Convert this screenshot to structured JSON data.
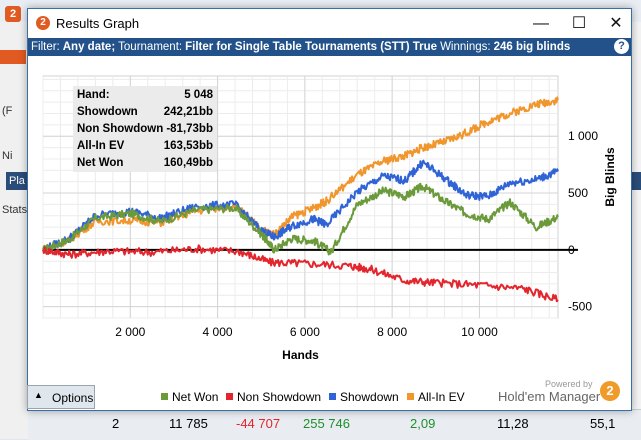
{
  "background": {
    "left_labels": [
      "(F",
      "Ni",
      "Pla",
      "Stats"
    ],
    "table_row": [
      "2",
      "11 785",
      "-44 707",
      "255 746",
      "2,09",
      "11,28",
      "55,1"
    ]
  },
  "window": {
    "title": "Results Graph",
    "minimize_glyph": "—",
    "maximize_glyph": "☐",
    "close_glyph": "✕"
  },
  "filter": {
    "prefix": "Filter:",
    "date": "Any date;",
    "tournament_label": "Tournament:",
    "tournament_value": "Filter for Single Table Tournaments (STT) True",
    "winnings_label": "Winnings:",
    "winnings_value": "246 big blinds",
    "help_glyph": "?"
  },
  "stats": [
    {
      "label": "Hand:",
      "value": "5 048"
    },
    {
      "label": "Showdown",
      "value": "242,21bb"
    },
    {
      "label": "Non Showdown",
      "value": "-81,73bb"
    },
    {
      "label": "All-In EV",
      "value": "163,53bb"
    },
    {
      "label": "Net Won",
      "value": "160,49bb"
    }
  ],
  "footer": {
    "options_label": "Options",
    "powered_by": "Powered by",
    "brand": "Hold'em Manager",
    "brand_logo": "2"
  },
  "chart_data": {
    "type": "line",
    "xlabel": "Hands",
    "ylabel": "Big Blinds",
    "xlim": [
      0,
      11800
    ],
    "ylim": [
      -600,
      1530
    ],
    "x_ticks": [
      "2 000",
      "4 000",
      "6 000",
      "8 000",
      "10 000"
    ],
    "x_tick_values": [
      2000,
      4000,
      6000,
      8000,
      10000
    ],
    "y_ticks": [
      "1 000",
      "500",
      "0",
      "-500"
    ],
    "y_tick_values": [
      1000,
      500,
      0,
      -500
    ],
    "grid": true,
    "legend_position": "bottom",
    "series": [
      {
        "name": "Net Won",
        "color": "#6a9a3a",
        "x": [
          0,
          600,
          1200,
          2000,
          2700,
          3500,
          4400,
          5000,
          5300,
          5700,
          6200,
          6600,
          7200,
          7800,
          8300,
          8700,
          9200,
          9700,
          10200,
          10700,
          11300,
          11800
        ],
        "y": [
          0,
          90,
          280,
          320,
          250,
          350,
          370,
          140,
          0,
          100,
          80,
          -20,
          400,
          520,
          470,
          560,
          430,
          320,
          270,
          420,
          200,
          290
        ]
      },
      {
        "name": "Non Showdown",
        "color": "#e3262d",
        "x": [
          0,
          600,
          1500,
          2500,
          3500,
          4500,
          5200,
          6000,
          7000,
          7500,
          8300,
          9000,
          10000,
          11000,
          11800
        ],
        "y": [
          0,
          -40,
          -10,
          -20,
          10,
          -15,
          -110,
          -120,
          -140,
          -170,
          -270,
          -290,
          -310,
          -340,
          -440
        ]
      },
      {
        "name": "Showdown",
        "color": "#2f63d6",
        "x": [
          0,
          600,
          1200,
          2000,
          2700,
          3500,
          4400,
          5000,
          5300,
          5700,
          6200,
          6500,
          7200,
          7800,
          8300,
          8700,
          9200,
          9700,
          10200,
          10700,
          11300,
          11800
        ],
        "y": [
          0,
          100,
          300,
          340,
          280,
          380,
          400,
          170,
          110,
          210,
          270,
          220,
          510,
          650,
          610,
          770,
          630,
          480,
          470,
          590,
          620,
          690
        ]
      },
      {
        "name": "All-In EV",
        "color": "#f0962c",
        "x": [
          0,
          600,
          1200,
          2000,
          2700,
          3500,
          4400,
          5000,
          5300,
          5700,
          6200,
          6500,
          7200,
          7800,
          8300,
          8700,
          9200,
          9700,
          10200,
          10700,
          11300,
          11800
        ],
        "y": [
          0,
          90,
          250,
          260,
          240,
          340,
          390,
          180,
          130,
          290,
          370,
          430,
          660,
          780,
          830,
          900,
          950,
          1030,
          1130,
          1200,
          1280,
          1320
        ]
      }
    ]
  }
}
